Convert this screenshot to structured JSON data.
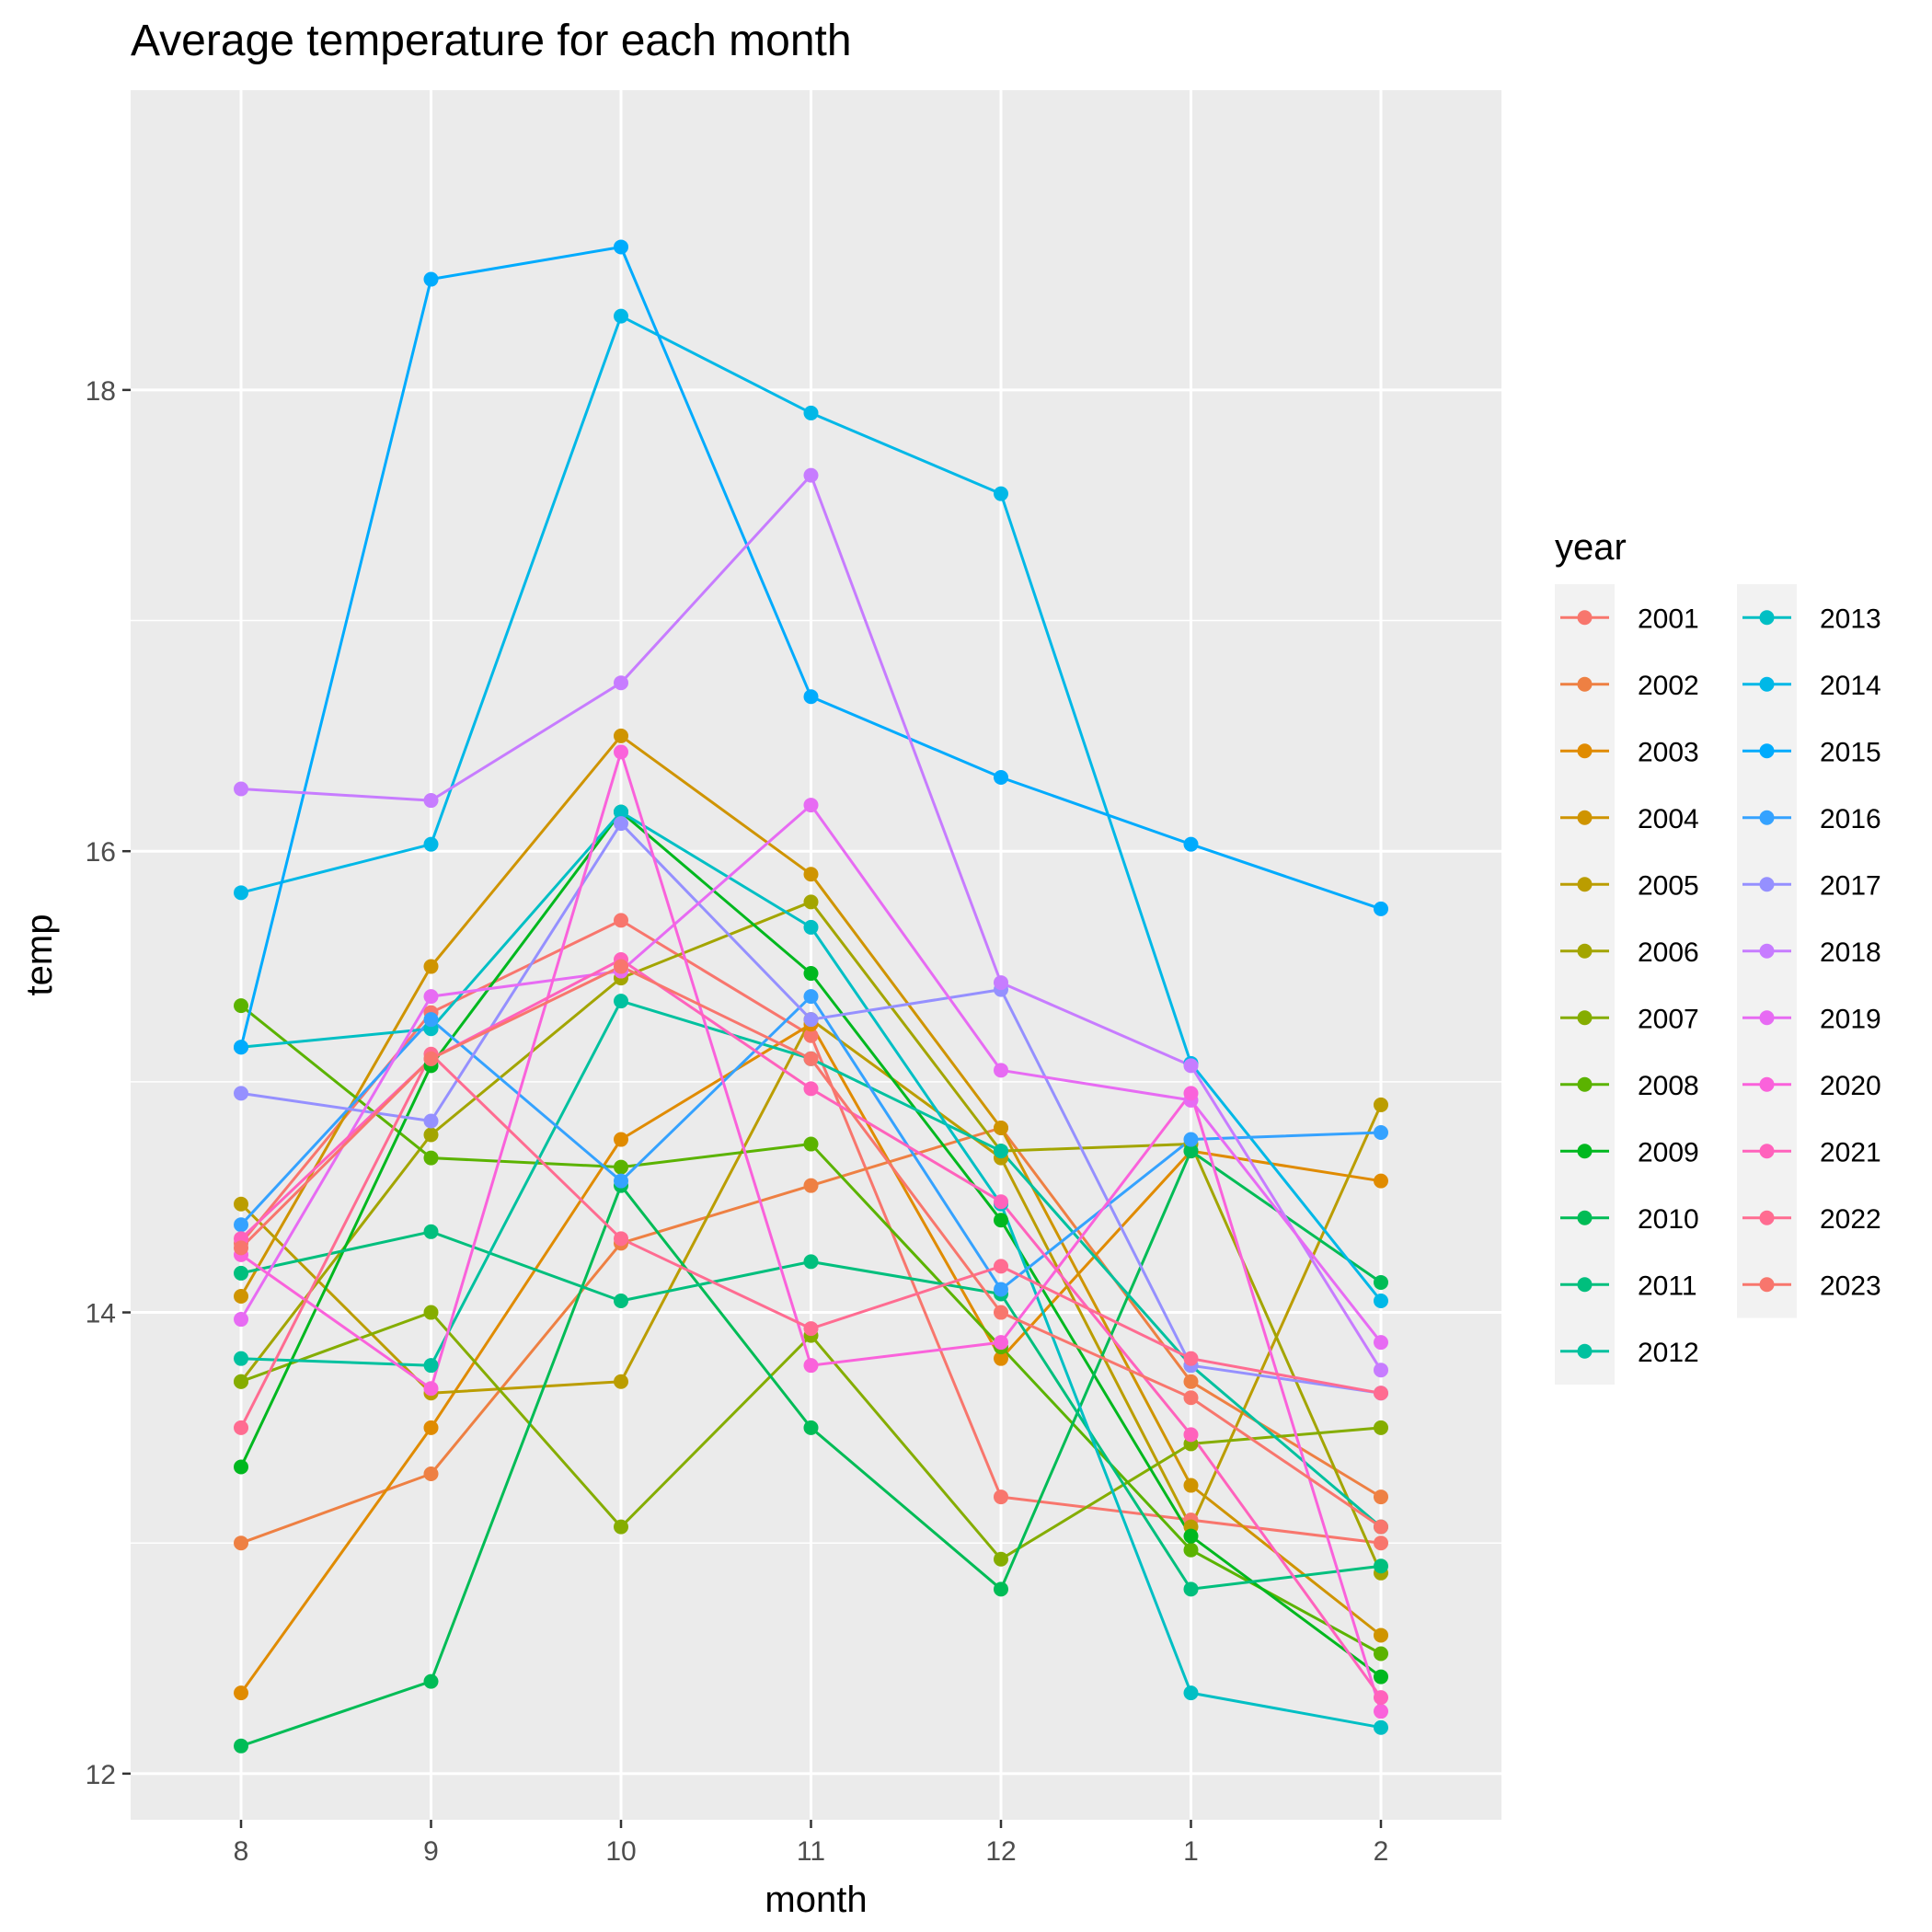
{
  "chart_data": {
    "type": "line",
    "title": "Average temperature for each month",
    "xlabel": "month",
    "ylabel": "temp",
    "categories": [
      "8",
      "9",
      "10",
      "11",
      "12",
      "1",
      "2"
    ],
    "ylim": [
      11.8,
      19.3
    ],
    "yticks": [
      12,
      14,
      16,
      18
    ],
    "grid": true,
    "legend": {
      "title": "year",
      "placement": "right",
      "columns": 2
    },
    "series": [
      {
        "name": "2001",
        "color": "#F8766D",
        "values": [
          14.3,
          15.3,
          15.7,
          15.2,
          13.2,
          13.1,
          13.0
        ]
      },
      {
        "name": "2002",
        "color": "#EE8043",
        "values": [
          13.0,
          13.3,
          14.3,
          14.55,
          14.8,
          13.7,
          13.2
        ]
      },
      {
        "name": "2003",
        "color": "#E08B00",
        "values": [
          12.35,
          13.5,
          14.75,
          15.25,
          13.8,
          14.7,
          14.57
        ]
      },
      {
        "name": "2004",
        "color": "#CF9400",
        "values": [
          14.07,
          15.5,
          16.5,
          15.9,
          14.8,
          13.25,
          12.6
        ]
      },
      {
        "name": "2005",
        "color": "#BB9D00",
        "values": [
          14.47,
          13.65,
          13.7,
          15.27,
          14.67,
          13.07,
          14.9
        ]
      },
      {
        "name": "2006",
        "color": "#A3A500",
        "values": [
          13.7,
          14.77,
          15.45,
          15.78,
          14.7,
          14.73,
          12.87
        ]
      },
      {
        "name": "2007",
        "color": "#85AD00",
        "values": [
          13.7,
          14.0,
          13.07,
          13.9,
          12.93,
          13.43,
          13.5
        ]
      },
      {
        "name": "2008",
        "color": "#5BB300",
        "values": [
          15.33,
          14.67,
          14.63,
          14.73,
          13.85,
          12.97,
          12.52
        ]
      },
      {
        "name": "2009",
        "color": "#00B81F",
        "values": [
          13.33,
          15.07,
          16.17,
          15.47,
          14.4,
          13.03,
          12.42
        ]
      },
      {
        "name": "2010",
        "color": "#00BC56",
        "values": [
          12.12,
          12.4,
          14.55,
          13.5,
          12.8,
          14.7,
          14.13
        ]
      },
      {
        "name": "2011",
        "color": "#00BF7D",
        "values": [
          14.17,
          14.35,
          14.05,
          14.22,
          14.08,
          12.8,
          12.9
        ]
      },
      {
        "name": "2012",
        "color": "#00C19F",
        "values": [
          13.8,
          13.77,
          15.35,
          15.1,
          14.7,
          13.77,
          13.07
        ]
      },
      {
        "name": "2013",
        "color": "#00BFC4",
        "values": [
          15.15,
          15.23,
          16.17,
          15.67,
          14.47,
          12.35,
          12.2
        ]
      },
      {
        "name": "2014",
        "color": "#00B8E7",
        "values": [
          15.82,
          16.03,
          18.32,
          17.9,
          17.55,
          15.08,
          14.05
        ]
      },
      {
        "name": "2015",
        "color": "#00ABFD",
        "values": [
          15.15,
          18.48,
          18.62,
          16.67,
          16.32,
          16.03,
          15.75
        ]
      },
      {
        "name": "2016",
        "color": "#35A2FF",
        "values": [
          14.38,
          15.27,
          14.57,
          15.37,
          14.1,
          14.75,
          14.78
        ]
      },
      {
        "name": "2017",
        "color": "#9590FF",
        "values": [
          14.95,
          14.83,
          16.12,
          15.27,
          15.4,
          13.77,
          13.65
        ]
      },
      {
        "name": "2018",
        "color": "#C77CFF",
        "values": [
          16.27,
          16.22,
          16.73,
          17.63,
          15.43,
          15.07,
          13.75
        ]
      },
      {
        "name": "2019",
        "color": "#E76BF3",
        "values": [
          13.97,
          15.37,
          15.48,
          16.2,
          15.05,
          14.92,
          13.87
        ]
      },
      {
        "name": "2020",
        "color": "#FA62DB",
        "values": [
          14.25,
          13.67,
          16.43,
          13.77,
          13.87,
          14.95,
          12.27
        ]
      },
      {
        "name": "2021",
        "color": "#FF62BC",
        "values": [
          14.32,
          15.1,
          15.53,
          14.97,
          14.48,
          13.47,
          12.33
        ]
      },
      {
        "name": "2022",
        "color": "#FF6C91",
        "values": [
          13.5,
          15.12,
          14.32,
          13.93,
          14.2,
          13.8,
          13.65
        ]
      },
      {
        "name": "2023",
        "color": "#F8766D",
        "values": [
          14.28,
          15.1,
          15.5,
          15.1,
          14.0,
          13.63,
          13.07
        ]
      }
    ]
  }
}
